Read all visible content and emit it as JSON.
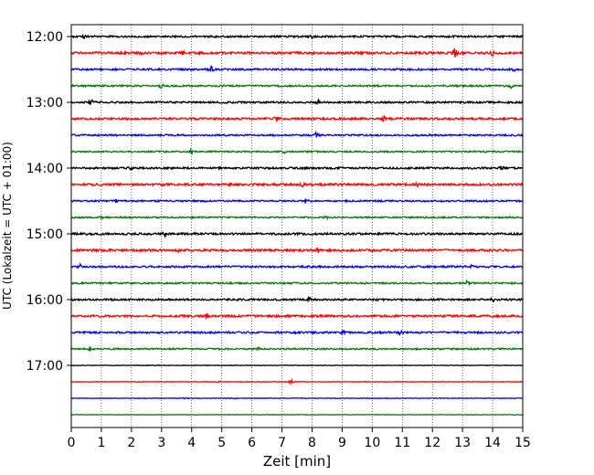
{
  "chart_data": {
    "type": "line",
    "title": "",
    "xlabel": "Zeit  [min]",
    "ylabel": "UTC (Lokalzeit = UTC + 01:00)",
    "xlim": [
      0,
      15
    ],
    "x_ticks": [
      "0",
      "1",
      "2",
      "3",
      "4",
      "5",
      "6",
      "7",
      "8",
      "9",
      "10",
      "11",
      "12",
      "13",
      "14",
      "15"
    ],
    "y_ticks": [
      "12:00",
      "13:00",
      "14:00",
      "15:00",
      "16:00",
      "17:00"
    ],
    "grid": "vertical dotted",
    "trace_colors": [
      "#000000",
      "#ff0000",
      "#0000ff",
      "#008000"
    ],
    "traces": [
      {
        "start": "12:00",
        "color": "#000000",
        "amplitude": 1.0,
        "events": [
          [
            0.45,
            2.0
          ],
          [
            8.0,
            1.2
          ]
        ]
      },
      {
        "start": "12:15",
        "color": "#ff0000",
        "amplitude": 1.2,
        "events": [
          [
            2.3,
            1.5
          ],
          [
            3.7,
            1.8
          ],
          [
            12.75,
            6.0
          ],
          [
            14.0,
            2.5
          ]
        ]
      },
      {
        "start": "12:30",
        "color": "#0000ff",
        "amplitude": 1.0,
        "events": [
          [
            4.65,
            2.8
          ],
          [
            14.7,
            1.2
          ]
        ]
      },
      {
        "start": "12:45",
        "color": "#008000",
        "amplitude": 0.9,
        "events": [
          [
            3.0,
            2.3
          ],
          [
            14.6,
            2.0
          ]
        ]
      },
      {
        "start": "13:00",
        "color": "#000000",
        "amplitude": 1.0,
        "events": [
          [
            0.65,
            2.5
          ],
          [
            8.2,
            1.5
          ]
        ]
      },
      {
        "start": "13:15",
        "color": "#ff0000",
        "amplitude": 1.1,
        "events": [
          [
            6.8,
            2.0
          ],
          [
            10.4,
            2.5
          ]
        ]
      },
      {
        "start": "13:30",
        "color": "#0000ff",
        "amplitude": 0.9,
        "events": [
          [
            8.15,
            3.0
          ]
        ]
      },
      {
        "start": "13:45",
        "color": "#008000",
        "amplitude": 0.8,
        "events": [
          [
            4.0,
            2.3
          ],
          [
            7.1,
            1.3
          ]
        ]
      },
      {
        "start": "14:00",
        "color": "#000000",
        "amplitude": 1.0,
        "events": [
          [
            1.95,
            3.0
          ],
          [
            14.3,
            2.2
          ]
        ]
      },
      {
        "start": "14:15",
        "color": "#ff0000",
        "amplitude": 1.2,
        "events": [
          [
            7.7,
            2.0
          ],
          [
            11.5,
            1.2
          ]
        ]
      },
      {
        "start": "14:30",
        "color": "#0000ff",
        "amplitude": 0.9,
        "events": [
          [
            1.5,
            1.3
          ],
          [
            7.8,
            2.5
          ]
        ]
      },
      {
        "start": "14:45",
        "color": "#008000",
        "amplitude": 0.8,
        "events": [
          [
            1.0,
            1.3
          ],
          [
            8.5,
            1.2
          ]
        ]
      },
      {
        "start": "15:00",
        "color": "#000000",
        "amplitude": 1.1,
        "events": [
          [
            3.1,
            1.5
          ]
        ]
      },
      {
        "start": "15:15",
        "color": "#ff0000",
        "amplitude": 1.2,
        "events": [
          [
            3.55,
            2.2
          ],
          [
            8.2,
            2.2
          ]
        ]
      },
      {
        "start": "15:30",
        "color": "#0000ff",
        "amplitude": 1.0,
        "events": [
          [
            0.3,
            2.0
          ],
          [
            13.3,
            2.0
          ]
        ]
      },
      {
        "start": "15:45",
        "color": "#008000",
        "amplitude": 0.9,
        "events": [
          [
            13.15,
            2.5
          ]
        ]
      },
      {
        "start": "16:00",
        "color": "#000000",
        "amplitude": 1.0,
        "events": [
          [
            6.0,
            1.8
          ],
          [
            7.9,
            1.8
          ],
          [
            14.0,
            1.5
          ]
        ]
      },
      {
        "start": "16:15",
        "color": "#ff0000",
        "amplitude": 1.1,
        "events": [
          [
            4.5,
            2.2
          ]
        ]
      },
      {
        "start": "16:30",
        "color": "#0000ff",
        "amplitude": 1.0,
        "events": [
          [
            9.0,
            1.8
          ],
          [
            10.95,
            2.4
          ]
        ]
      },
      {
        "start": "16:45",
        "color": "#008000",
        "amplitude": 0.8,
        "events": [
          [
            0.6,
            1.5
          ],
          [
            6.2,
            1.2
          ]
        ]
      },
      {
        "start": "17:00",
        "color": "#000000",
        "amplitude": 0.3,
        "events": []
      },
      {
        "start": "17:15",
        "color": "#ff0000",
        "amplitude": 0.3,
        "events": [
          [
            4.9,
            0.6
          ],
          [
            7.3,
            2.4
          ]
        ]
      },
      {
        "start": "17:30",
        "color": "#0000ff",
        "amplitude": 0.3,
        "events": [
          [
            3.8,
            0.7
          ],
          [
            5.4,
            0.5
          ]
        ]
      },
      {
        "start": "17:45",
        "color": "#008000",
        "amplitude": 0.25,
        "events": []
      }
    ]
  }
}
